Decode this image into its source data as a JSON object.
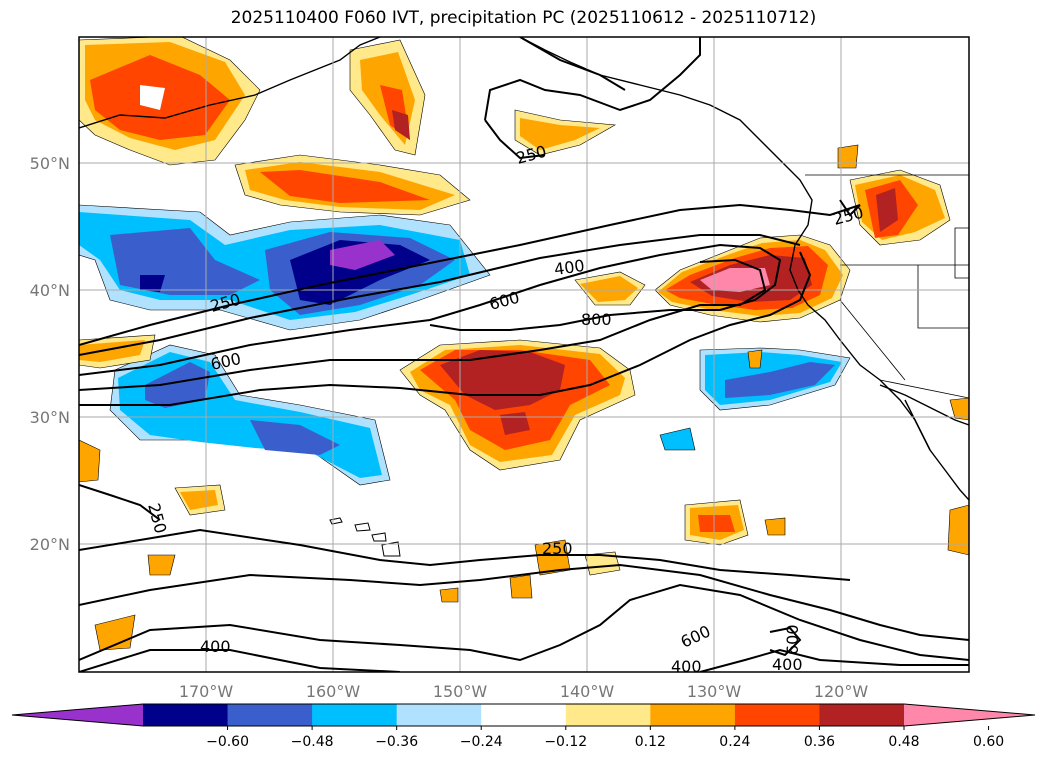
{
  "title": "2025110400 F060 IVT, precipitation PC (2025110612 - 2025110712)",
  "map": {
    "projection": "PlateCarree",
    "lon_range": [
      -180,
      -110
    ],
    "lat_range": [
      10,
      60
    ],
    "lat_labels": [
      "50°N",
      "40°N",
      "30°N",
      "20°N"
    ],
    "lon_labels": [
      "170°W",
      "160°W",
      "150°W",
      "140°W",
      "130°W",
      "120°W"
    ],
    "gridlines": true,
    "coastlines": true
  },
  "ivt_contour_labels": [
    "250",
    "250",
    "250",
    "250",
    "400",
    "400",
    "400",
    "400",
    "600",
    "600",
    "600",
    "600",
    "800",
    "250"
  ],
  "colorbar": {
    "ticks": [
      "−0.60",
      "−0.48",
      "−0.36",
      "−0.24",
      "−0.12",
      "0.12",
      "0.24",
      "0.36",
      "0.48",
      "0.60"
    ],
    "colors": [
      "#9932cc",
      "#00008b",
      "#3a5fcd",
      "#00bfff",
      "#b0e2ff",
      "#ffffff",
      "#ffe98a",
      "#ffa500",
      "#ff4500",
      "#b22222",
      "#ff88aa"
    ],
    "extend": "both"
  }
}
